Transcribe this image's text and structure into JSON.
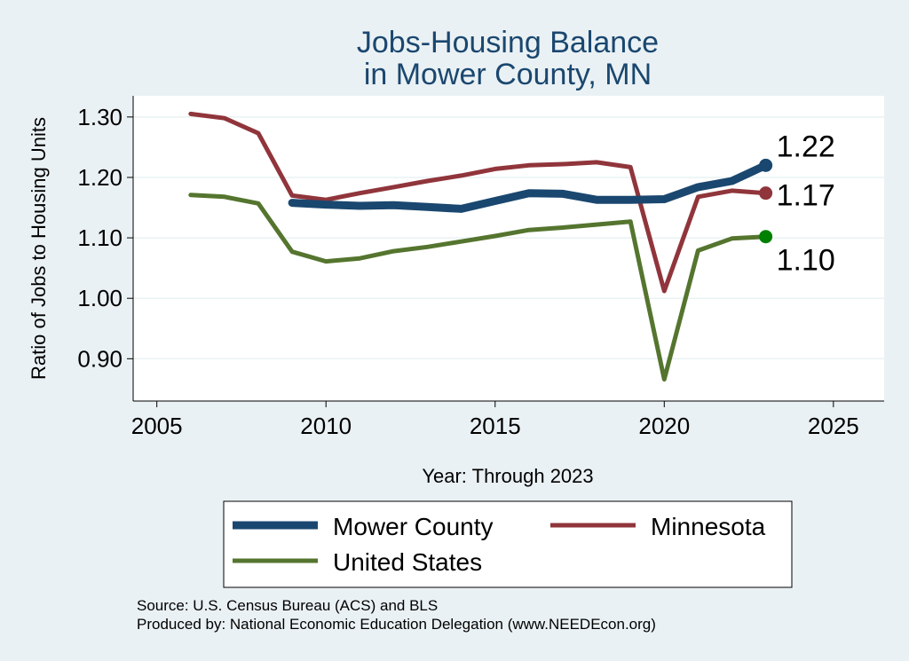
{
  "chart_data": {
    "type": "line",
    "title": [
      "Jobs-Housing Balance",
      "in Mower County, MN"
    ],
    "xlabel": "Year: Through 2023",
    "ylabel": "Ratio of Jobs to Housing Units",
    "xlim": [
      2004.3,
      2026.5
    ],
    "ylim": [
      0.83,
      1.335
    ],
    "xticks": [
      2005,
      2010,
      2015,
      2020,
      2025
    ],
    "yticks": [
      0.9,
      1.0,
      1.1,
      1.2,
      1.3
    ],
    "ytick_labels": [
      "0.90",
      "1.00",
      "1.10",
      "1.20",
      "1.30"
    ],
    "grid": "horizontal",
    "legend_position": "bottom",
    "series": [
      {
        "name": "Mower County",
        "color": "#1a476f",
        "end_label": "1.22",
        "x": [
          2009,
          2010,
          2011,
          2012,
          2013,
          2014,
          2015,
          2016,
          2017,
          2018,
          2019,
          2020,
          2021,
          2022,
          2023
        ],
        "values": [
          1.158,
          1.155,
          1.153,
          1.154,
          1.151,
          1.148,
          1.161,
          1.174,
          1.173,
          1.163,
          1.163,
          1.164,
          1.184,
          1.194,
          1.22
        ]
      },
      {
        "name": "Minnesota",
        "color": "#90353b",
        "end_label": "1.17",
        "x": [
          2006,
          2007,
          2008,
          2009,
          2010,
          2011,
          2012,
          2013,
          2014,
          2015,
          2016,
          2017,
          2018,
          2019,
          2020,
          2021,
          2022,
          2023
        ],
        "values": [
          1.305,
          1.298,
          1.273,
          1.17,
          1.163,
          1.174,
          1.184,
          1.194,
          1.203,
          1.214,
          1.22,
          1.222,
          1.225,
          1.217,
          1.012,
          1.168,
          1.178,
          1.174
        ]
      },
      {
        "name": "United States",
        "color": "#55752f",
        "marker_color": "#008000",
        "end_label": "1.10",
        "x": [
          2006,
          2007,
          2008,
          2009,
          2010,
          2011,
          2012,
          2013,
          2014,
          2015,
          2016,
          2017,
          2018,
          2019,
          2020,
          2021,
          2022,
          2023
        ],
        "values": [
          1.171,
          1.168,
          1.157,
          1.077,
          1.061,
          1.066,
          1.078,
          1.085,
          1.094,
          1.103,
          1.113,
          1.117,
          1.122,
          1.127,
          0.866,
          1.079,
          1.099,
          1.102
        ]
      }
    ]
  },
  "source_lines": [
    "Source: U.S. Census Bureau (ACS) and BLS",
    "Produced by: National Economic Education Delegation (www.NEEDEcon.org)"
  ]
}
